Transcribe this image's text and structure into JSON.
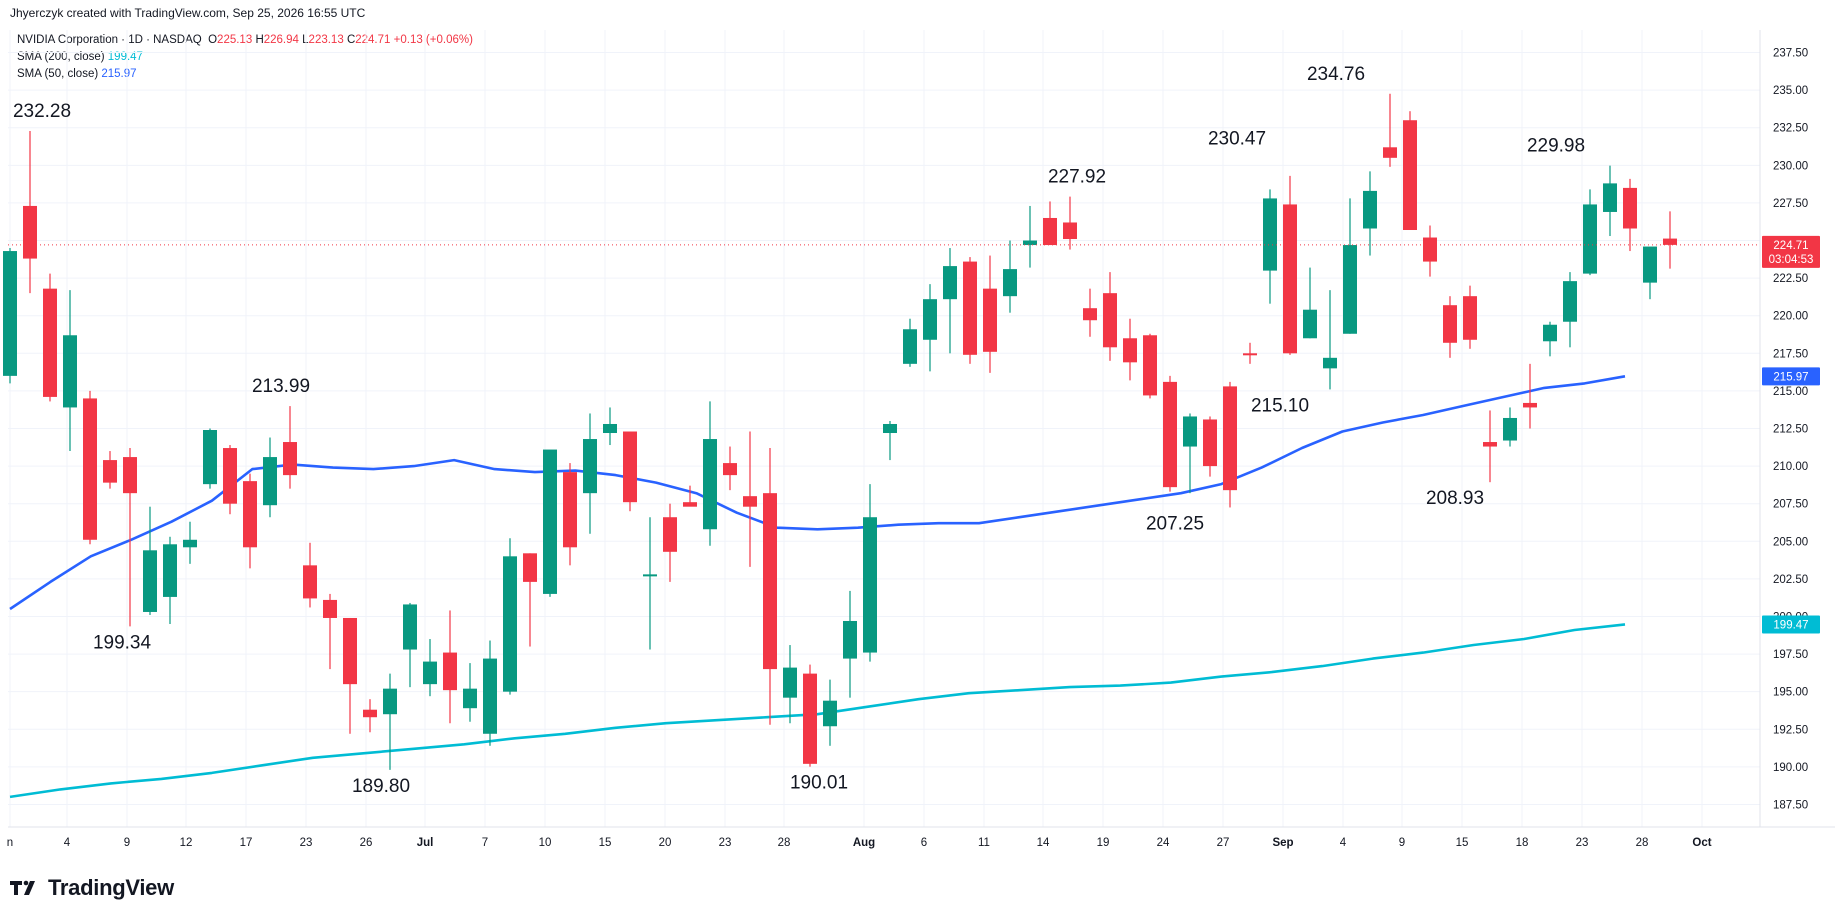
{
  "header": {
    "text": "Jhyerczyk created with TradingView.com, Sep 25, 2026 16:55 UTC"
  },
  "legend": {
    "symbol": "NVIDIA Corporation · 1D · NASDAQ",
    "o_label": "O",
    "o_value": "225.13",
    "h_label": "H",
    "h_value": "226.94",
    "l_label": "L",
    "l_value": "223.13",
    "c_label": "C",
    "c_value": "224.71",
    "change": "+0.13 (+0.06%)",
    "sma200_label": "SMA (200, close)",
    "sma200_value": "199.47",
    "sma50_label": "SMA (50, close)",
    "sma50_value": "215.97"
  },
  "footer": {
    "brand": "TradingView"
  },
  "colors": {
    "up": "#089981",
    "down": "#f23645",
    "sma50": "#2962ff",
    "sma200": "#00bcd4",
    "grid": "#f0f3fa"
  },
  "chart_data": {
    "type": "candlestick",
    "ylim": [
      186,
      239
    ],
    "y_ticks": [
      "187.50",
      "190.00",
      "192.50",
      "195.00",
      "197.50",
      "200.00",
      "202.50",
      "205.00",
      "207.50",
      "210.00",
      "212.50",
      "215.00",
      "217.50",
      "220.00",
      "222.50",
      "225.00",
      "227.50",
      "230.00",
      "232.50",
      "235.00",
      "237.50"
    ],
    "x_ticks": [
      "n",
      "4",
      "9",
      "12",
      "17",
      "23",
      "26",
      "Jul",
      "7",
      "10",
      "15",
      "20",
      "23",
      "28",
      "Aug",
      "6",
      "11",
      "14",
      "19",
      "24",
      "27",
      "Sep",
      "4",
      "9",
      "15",
      "18",
      "23",
      "28",
      "Oct"
    ],
    "last_price": {
      "value": "224.71",
      "countdown": "03:04:53"
    },
    "sma50_tag": "215.97",
    "sma200_tag": "199.47",
    "annotations": [
      {
        "text": "232.28",
        "value": 232.28
      },
      {
        "text": "199.34",
        "value": 199.34
      },
      {
        "text": "213.99",
        "value": 213.99
      },
      {
        "text": "189.80",
        "value": 189.8
      },
      {
        "text": "190.01",
        "value": 190.01
      },
      {
        "text": "227.92",
        "value": 227.92
      },
      {
        "text": "207.25",
        "value": 207.25
      },
      {
        "text": "230.47",
        "value": 230.47
      },
      {
        "text": "215.10",
        "value": 215.1
      },
      {
        "text": "234.76",
        "value": 234.76
      },
      {
        "text": "208.93",
        "value": 208.93
      },
      {
        "text": "229.98",
        "value": 229.98
      }
    ],
    "candles": [
      {
        "o": 216,
        "h": 224.5,
        "l": 215.5,
        "c": 224.3
      },
      {
        "o": 227.3,
        "h": 232.28,
        "l": 221.5,
        "c": 223.8
      },
      {
        "o": 221.8,
        "h": 222.8,
        "l": 214.3,
        "c": 214.6
      },
      {
        "o": 213.9,
        "h": 221.7,
        "l": 211,
        "c": 218.7
      },
      {
        "o": 214.5,
        "h": 215,
        "l": 204.8,
        "c": 205.1
      },
      {
        "o": 210.4,
        "h": 211,
        "l": 208.5,
        "c": 208.9
      },
      {
        "o": 210.6,
        "h": 211.2,
        "l": 199.34,
        "c": 208.2
      },
      {
        "o": 200.3,
        "h": 207.3,
        "l": 200.1,
        "c": 204.4
      },
      {
        "o": 201.3,
        "h": 205.3,
        "l": 199.5,
        "c": 204.8
      },
      {
        "o": 204.6,
        "h": 206.3,
        "l": 203.5,
        "c": 205.1
      },
      {
        "o": 208.8,
        "h": 212.5,
        "l": 208.5,
        "c": 212.4
      },
      {
        "o": 211.2,
        "h": 211.4,
        "l": 206.8,
        "c": 207.5
      },
      {
        "o": 209,
        "h": 209.5,
        "l": 203.2,
        "c": 204.6
      },
      {
        "o": 207.4,
        "h": 211.9,
        "l": 206.6,
        "c": 210.6
      },
      {
        "o": 211.6,
        "h": 213.99,
        "l": 208.5,
        "c": 209.4
      },
      {
        "o": 203.4,
        "h": 204.9,
        "l": 200.6,
        "c": 201.2
      },
      {
        "o": 201.1,
        "h": 201.5,
        "l": 196.5,
        "c": 199.9
      },
      {
        "o": 199.9,
        "h": 199.9,
        "l": 192.2,
        "c": 195.5
      },
      {
        "o": 193.8,
        "h": 194.5,
        "l": 192.3,
        "c": 193.3
      },
      {
        "o": 193.5,
        "h": 196.2,
        "l": 189.8,
        "c": 195.2
      },
      {
        "o": 197.8,
        "h": 200.9,
        "l": 195.3,
        "c": 200.8
      },
      {
        "o": 195.5,
        "h": 198.5,
        "l": 194.7,
        "c": 197
      },
      {
        "o": 197.6,
        "h": 200.4,
        "l": 192.9,
        "c": 195.1
      },
      {
        "o": 193.9,
        "h": 196.9,
        "l": 193,
        "c": 195.2
      },
      {
        "o": 192.2,
        "h": 198.4,
        "l": 191.4,
        "c": 197.2
      },
      {
        "o": 195,
        "h": 205.2,
        "l": 194.8,
        "c": 204
      },
      {
        "o": 204.2,
        "h": 204.2,
        "l": 198,
        "c": 202.3
      },
      {
        "o": 201.5,
        "h": 211,
        "l": 201.3,
        "c": 211.1
      },
      {
        "o": 209.6,
        "h": 210.2,
        "l": 203.4,
        "c": 204.6
      },
      {
        "o": 208.2,
        "h": 213.5,
        "l": 205.5,
        "c": 211.8
      },
      {
        "o": 212.2,
        "h": 213.9,
        "l": 211.4,
        "c": 212.8
      },
      {
        "o": 212.3,
        "h": 212.3,
        "l": 207,
        "c": 207.6
      },
      {
        "o": 202.8,
        "h": 206.6,
        "l": 197.8,
        "c": 202.8
      },
      {
        "o": 206.6,
        "h": 207.5,
        "l": 202.3,
        "c": 204.3
      },
      {
        "o": 207.6,
        "h": 208.7,
        "l": 207.5,
        "c": 207.3
      },
      {
        "o": 205.8,
        "h": 214.3,
        "l": 204.7,
        "c": 211.8
      },
      {
        "o": 210.2,
        "h": 211.3,
        "l": 208.4,
        "c": 209.4
      },
      {
        "o": 208,
        "h": 212.3,
        "l": 203.3,
        "c": 207.3
      },
      {
        "o": 208.2,
        "h": 211.2,
        "l": 192.8,
        "c": 196.5
      },
      {
        "o": 194.6,
        "h": 198.1,
        "l": 192.9,
        "c": 196.6
      },
      {
        "o": 196.2,
        "h": 196.8,
        "l": 190.01,
        "c": 190.2
      },
      {
        "o": 192.7,
        "h": 195.8,
        "l": 191.4,
        "c": 194.4
      },
      {
        "o": 197.2,
        "h": 201.7,
        "l": 194.6,
        "c": 199.7
      },
      {
        "o": 197.6,
        "h": 208.8,
        "l": 197,
        "c": 206.6
      },
      {
        "o": 212.2,
        "h": 213,
        "l": 210.4,
        "c": 212.8
      },
      {
        "o": 216.8,
        "h": 219.8,
        "l": 216.6,
        "c": 219.1
      },
      {
        "o": 218.4,
        "h": 222.1,
        "l": 216.3,
        "c": 221.1
      },
      {
        "o": 221.1,
        "h": 224.5,
        "l": 217.5,
        "c": 223.3
      },
      {
        "o": 223.6,
        "h": 223.9,
        "l": 216.8,
        "c": 217.4
      },
      {
        "o": 221.8,
        "h": 224,
        "l": 216.2,
        "c": 217.6
      },
      {
        "o": 221.3,
        "h": 225,
        "l": 220.2,
        "c": 223.1
      },
      {
        "o": 224.7,
        "h": 227.3,
        "l": 223.2,
        "c": 225
      },
      {
        "o": 226.5,
        "h": 227.6,
        "l": 224.7,
        "c": 224.7
      },
      {
        "o": 226.2,
        "h": 227.92,
        "l": 224.4,
        "c": 225.1
      },
      {
        "o": 220.5,
        "h": 221.8,
        "l": 218.6,
        "c": 219.7
      },
      {
        "o": 221.5,
        "h": 222.9,
        "l": 217,
        "c": 217.9
      },
      {
        "o": 218.5,
        "h": 219.8,
        "l": 215.7,
        "c": 216.9
      },
      {
        "o": 218.7,
        "h": 218.8,
        "l": 214.5,
        "c": 214.7
      },
      {
        "o": 215.6,
        "h": 216,
        "l": 208.3,
        "c": 208.6
      },
      {
        "o": 211.3,
        "h": 213.5,
        "l": 208.2,
        "c": 213.3
      },
      {
        "o": 213.1,
        "h": 213.3,
        "l": 209.3,
        "c": 210
      },
      {
        "o": 215.3,
        "h": 215.6,
        "l": 207.25,
        "c": 208.4
      },
      {
        "o": 217.5,
        "h": 218.2,
        "l": 216.8,
        "c": 217.4
      },
      {
        "o": 223,
        "h": 228.4,
        "l": 220.8,
        "c": 227.8
      },
      {
        "o": 227.4,
        "h": 229.3,
        "l": 217.4,
        "c": 217.5
      },
      {
        "o": 218.5,
        "h": 223.2,
        "l": 218.5,
        "c": 220.4
      },
      {
        "o": 216.5,
        "h": 221.7,
        "l": 215.1,
        "c": 217.2
      },
      {
        "o": 218.8,
        "h": 227.8,
        "l": 218.8,
        "c": 224.7
      },
      {
        "o": 225.8,
        "h": 229.6,
        "l": 224,
        "c": 228.3
      },
      {
        "o": 231.2,
        "h": 234.76,
        "l": 229.9,
        "c": 230.5
      },
      {
        "o": 233,
        "h": 233.6,
        "l": 225.7,
        "c": 225.7
      },
      {
        "o": 225.2,
        "h": 226,
        "l": 222.6,
        "c": 223.6
      },
      {
        "o": 220.7,
        "h": 221.3,
        "l": 217.2,
        "c": 218.2
      },
      {
        "o": 221.3,
        "h": 222,
        "l": 217.8,
        "c": 218.4
      },
      {
        "o": 211.6,
        "h": 213.7,
        "l": 208.93,
        "c": 211.3
      },
      {
        "o": 211.7,
        "h": 213.9,
        "l": 211.3,
        "c": 213.2
      },
      {
        "o": 214.2,
        "h": 216.8,
        "l": 212.5,
        "c": 213.9
      },
      {
        "o": 218.3,
        "h": 219.6,
        "l": 217.3,
        "c": 219.4
      },
      {
        "o": 219.6,
        "h": 222.9,
        "l": 217.9,
        "c": 222.3
      },
      {
        "o": 222.8,
        "h": 228.4,
        "l": 222.7,
        "c": 227.4
      },
      {
        "o": 226.9,
        "h": 229.98,
        "l": 225.3,
        "c": 228.8
      },
      {
        "o": 228.5,
        "h": 229.1,
        "l": 224.3,
        "c": 225.8
      },
      {
        "o": 222.2,
        "h": 224.5,
        "l": 221.1,
        "c": 224.6
      },
      {
        "o": 225.13,
        "h": 226.94,
        "l": 223.13,
        "c": 224.71
      }
    ],
    "sma50": [
      200.5,
      202.3,
      204,
      205.1,
      206.3,
      207.7,
      209.8,
      210.1,
      209.9,
      209.8,
      210,
      210.4,
      209.8,
      209.6,
      209.7,
      209.4,
      208.9,
      208.2,
      206.9,
      205.9,
      205.8,
      205.9,
      206.1,
      206.2,
      206.2,
      206.6,
      207,
      207.4,
      207.8,
      208.2,
      208.8,
      209.9,
      211.2,
      212.3,
      212.9,
      213.4,
      214,
      214.6,
      215.2,
      215.5,
      215.97
    ],
    "sma200": [
      188,
      188.5,
      188.9,
      189.2,
      189.6,
      190.1,
      190.6,
      190.9,
      191.2,
      191.5,
      191.9,
      192.2,
      192.6,
      192.9,
      193.1,
      193.3,
      193.5,
      194,
      194.5,
      194.9,
      195.1,
      195.3,
      195.4,
      195.6,
      196,
      196.3,
      196.7,
      197.2,
      197.6,
      198.1,
      198.5,
      199.1,
      199.47
    ]
  }
}
